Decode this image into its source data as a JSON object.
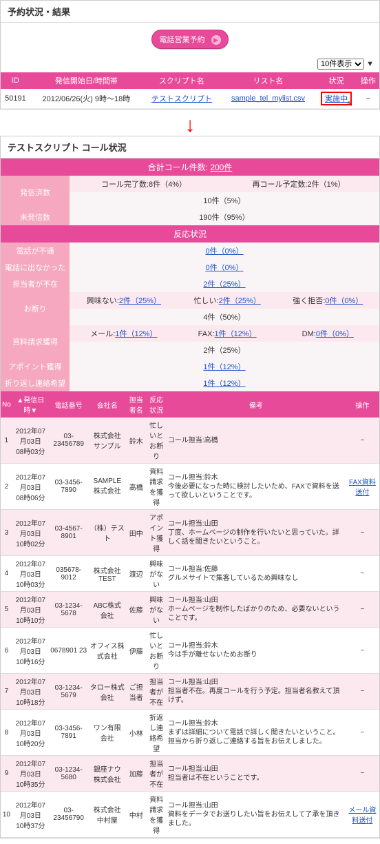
{
  "top": {
    "title": "予約状況・結果",
    "btn": "電話営業予約",
    "pager": "10件表示",
    "headers": [
      "ID",
      "発信開始日/時間帯",
      "スクリプト名",
      "リスト名",
      "状況",
      "操作"
    ],
    "row": {
      "id": "50191",
      "date": "2012/06/26(火) 9時～18時",
      "script": "テストスクリプト",
      "list": "sample_tel_mylist.csv",
      "status": "実施中",
      "op": "−"
    }
  },
  "detail": {
    "title": "テストスクリプト  コール状況",
    "totalLabel": "合計コール件数:",
    "totalVal": "200件",
    "rows": [
      {
        "lbl": "発信済数",
        "l": "コール完了数:8件（4%）",
        "r": "再コール予定数:2件（1%）",
        "sub": "10件（5%）"
      },
      {
        "lbl": "未発信数",
        "sub": "190件（95%）"
      }
    ],
    "reactTitle": "反応状況",
    "react": [
      {
        "lbl": "電話が不通",
        "c": "0件（0%）"
      },
      {
        "lbl": "電話に出なかった",
        "c": "0件（0%）"
      },
      {
        "lbl": "担当者が不在",
        "c": "2件（25%）"
      },
      {
        "lbl": "お断り",
        "l": "興味ない:2件（25%）",
        "m": "忙しい:2件（25%）",
        "r": "強く拒否:0件（0%）",
        "sub": "4件（50%）"
      },
      {
        "lbl": "資料請求獲得",
        "l": "メール:1件（12%）",
        "m": "FAX:1件（12%）",
        "r": "DM:0件（0%）",
        "sub": "2件（25%）"
      },
      {
        "lbl": "アポイント獲得",
        "c": "1件（12%）"
      },
      {
        "lbl": "折り返し連絡希望",
        "c": "1件（12%）"
      }
    ]
  },
  "log": {
    "headers": [
      "No",
      "▲発信日時▼",
      "電話番号",
      "会社名",
      "担当者名",
      "反応状況",
      "備考",
      "操作"
    ],
    "rows": [
      {
        "no": "1",
        "dt": "2012年07月03日\n08時03分",
        "tel": "03-23456789",
        "co": "株式会社\nサンプル",
        "person": "鈴木",
        "react": "忙しいと\nお断り",
        "memo": "コール担当:高橋",
        "op": "−"
      },
      {
        "no": "2",
        "dt": "2012年07月03日\n08時06分",
        "tel": "03-3456-7890",
        "co": "SAMPLE\n株式会社",
        "person": "高橋",
        "react": "資料請求\nを獲得",
        "memo": "コール担当:鈴木\n今後必要になった時に検討したいため、FAXで資料を送って欲しいということです。",
        "op": "FAX資料送付"
      },
      {
        "no": "3",
        "dt": "2012年07月03日\n10時02分",
        "tel": "03-4567-8901",
        "co": "（株）テスト",
        "person": "田中",
        "react": "アポイン\nト獲得",
        "memo": "コール担当:山田\n丁度、ホームページの制作を行いたいと思っていた。詳しく話を聞きたいということ。",
        "op": "−"
      },
      {
        "no": "4",
        "dt": "2012年07月03日\n10時03分",
        "tel": "035678-9012",
        "co": "株式会社\nTEST",
        "person": "渡辺",
        "react": "興味がな\nい",
        "memo": "コール担当:佐藤\nグルメサイトで集客しているため興味なし",
        "op": "−"
      },
      {
        "no": "5",
        "dt": "2012年07月03日\n10時10分",
        "tel": "03-1234-5678",
        "co": "ABC株式\n会社",
        "person": "佐藤",
        "react": "興味がな\nい",
        "memo": "コール担当:山田\nホームページを制作したばかりのため、必要ないということです。",
        "op": "−"
      },
      {
        "no": "6",
        "dt": "2012年07月03日\n10時16分",
        "tel": "0678901 23",
        "co": "オフィス株\n式会社",
        "person": "伊藤",
        "react": "忙しいと\nお断り",
        "memo": "コール担当:鈴木\n今は手が離せないためお断り",
        "op": "−"
      },
      {
        "no": "7",
        "dt": "2012年07月03日\n10時18分",
        "tel": "03-1234-5679",
        "co": "タロー株式\n会社",
        "person": "ご担当者",
        "react": "担当者が\n不在",
        "memo": "コール担当:山田\n担当者不在。再度コールを行う予定。担当者名教えて頂けず。",
        "op": "−"
      },
      {
        "no": "8",
        "dt": "2012年07月03日\n10時20分",
        "tel": "03-3456-7891",
        "co": "ワン有限\n会社",
        "person": "小林",
        "react": "折返し連\n絡希望",
        "memo": "コール担当:鈴木\nまずは詳細について電話で詳しく聞きたいということ。担当から折り返しご連絡する旨をお伝えしました。",
        "op": "−"
      },
      {
        "no": "9",
        "dt": "2012年07月03日\n10時35分",
        "tel": "03-1234-5680",
        "co": "銀座ナウ\n株式会社",
        "person": "加藤",
        "react": "担当者が\n不在",
        "memo": "コール担当:山田\n担当者は不在ということです。",
        "op": "−"
      },
      {
        "no": "10",
        "dt": "2012年07月03日\n10時37分",
        "tel": "03-23456790",
        "co": "株式会社\n中村屋",
        "person": "中村",
        "react": "資料請求\nを獲得",
        "memo": "コール担当:山田\n資料をデータでお送りしたい旨をお伝えして了承を頂きました。",
        "op": "メール資料送付"
      }
    ]
  }
}
